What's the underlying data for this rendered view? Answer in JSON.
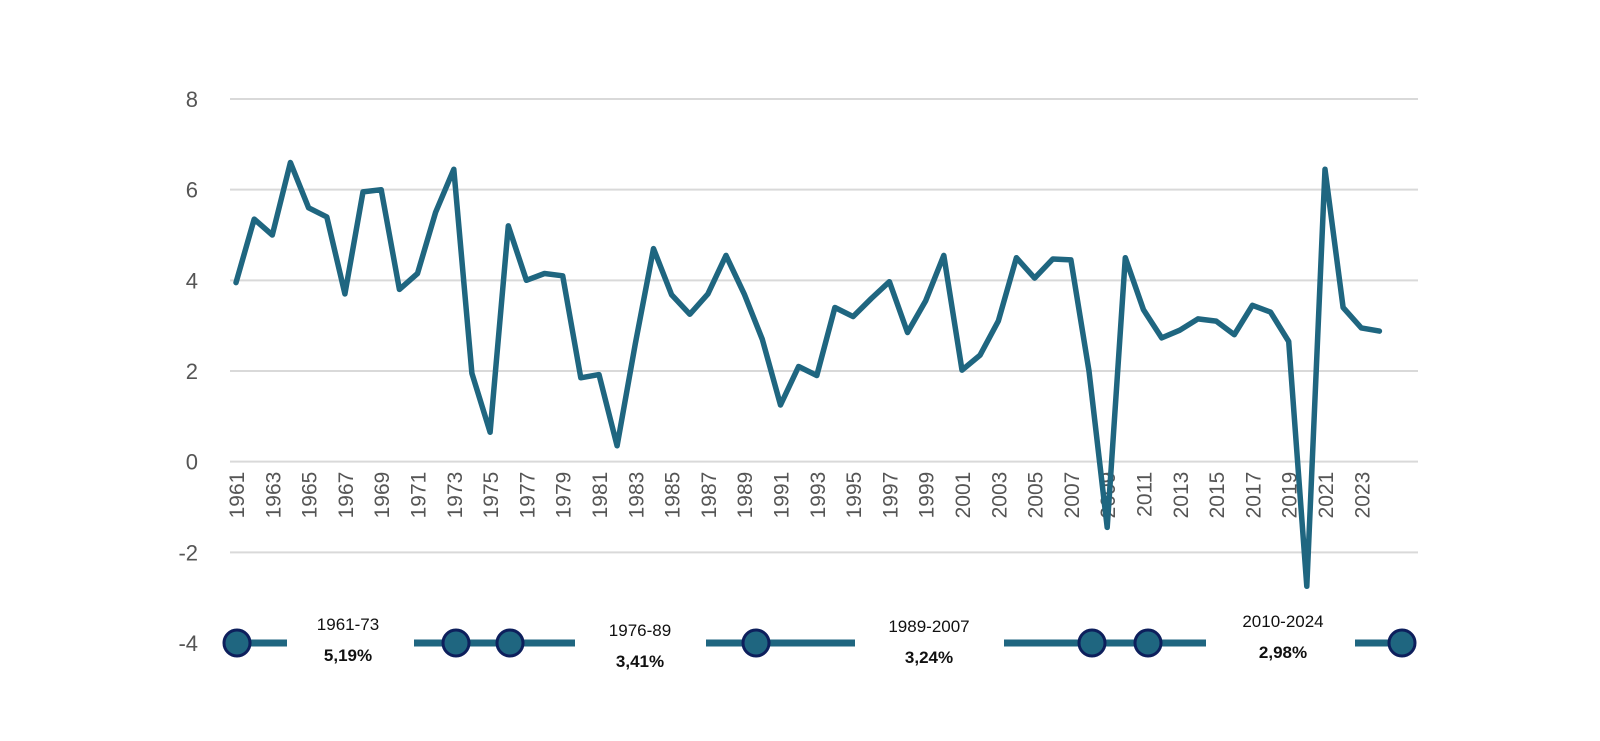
{
  "chart_data": {
    "type": "line",
    "title": "",
    "xlabel": "",
    "ylabel": "",
    "ylim": [
      -4,
      8
    ],
    "yticks": [
      "8",
      "6",
      "4",
      "2",
      "0",
      "-2",
      "-4"
    ],
    "ytick_values": [
      8,
      6,
      4,
      2,
      0,
      -2,
      -4
    ],
    "xticks": [
      "1961",
      "1963",
      "1965",
      "1967",
      "1969",
      "1971",
      "1973",
      "1975",
      "1977",
      "1979",
      "1981",
      "1983",
      "1985",
      "1987",
      "1989",
      "1991",
      "1993",
      "1995",
      "1997",
      "1999",
      "2001",
      "2003",
      "2005",
      "2007",
      "2009",
      "2011",
      "2013",
      "2015",
      "2017",
      "2019",
      "2021",
      "2023"
    ],
    "grid": true,
    "series_color": "#1f6680",
    "marker_fill": "#1f6680",
    "marker_stroke": "#0d1f5c",
    "x": [
      1961,
      1962,
      1963,
      1964,
      1965,
      1966,
      1967,
      1968,
      1969,
      1970,
      1971,
      1972,
      1973,
      1974,
      1975,
      1976,
      1977,
      1978,
      1979,
      1980,
      1981,
      1982,
      1983,
      1984,
      1985,
      1986,
      1987,
      1988,
      1989,
      1990,
      1991,
      1992,
      1993,
      1994,
      1995,
      1996,
      1997,
      1998,
      1999,
      2000,
      2001,
      2002,
      2003,
      2004,
      2005,
      2006,
      2007,
      2008,
      2009,
      2010,
      2011,
      2012,
      2013,
      2014,
      2015,
      2016,
      2017,
      2018,
      2019,
      2020,
      2021,
      2022,
      2023,
      2024
    ],
    "series": [
      {
        "values": [
          3.95,
          5.35,
          5.0,
          6.6,
          5.6,
          5.4,
          3.7,
          5.95,
          6.0,
          3.8,
          4.15,
          5.5,
          6.45,
          1.95,
          0.65,
          5.2,
          4.0,
          4.15,
          4.1,
          1.85,
          1.92,
          0.35,
          2.6,
          4.7,
          3.68,
          3.25,
          3.7,
          4.55,
          3.7,
          2.7,
          1.25,
          2.1,
          1.9,
          3.4,
          3.2,
          3.6,
          3.97,
          2.85,
          3.55,
          4.55,
          2.02,
          2.35,
          3.1,
          4.5,
          4.05,
          4.47,
          4.45,
          2.0,
          -1.45,
          4.5,
          3.35,
          2.73,
          2.9,
          3.15,
          3.1,
          2.8,
          3.45,
          3.3,
          2.65,
          -2.75,
          6.45,
          3.4,
          2.95,
          2.88
        ]
      }
    ],
    "periods": [
      {
        "label": "1961-73",
        "value": "5,19%",
        "y": 5.19
      },
      {
        "label": "1976-89",
        "value": "3,41%",
        "y": 3.41
      },
      {
        "label": "1989-2007",
        "value": "3,24%",
        "y": 3.24
      },
      {
        "label": "2010-2024",
        "value": "2,98%",
        "y": 2.98
      }
    ]
  }
}
